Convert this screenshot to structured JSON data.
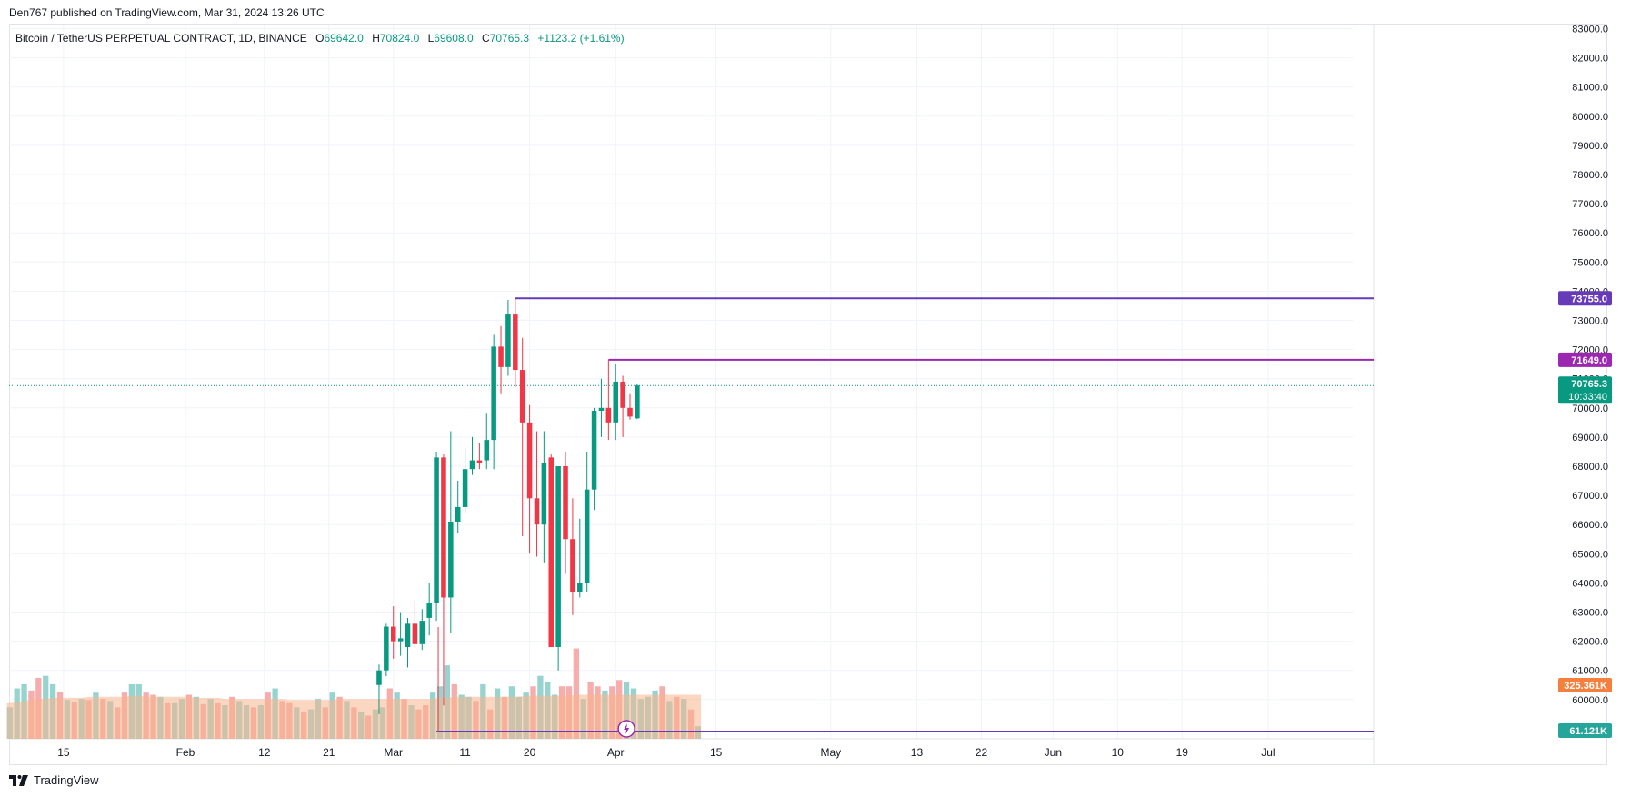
{
  "header": {
    "published": "Den767 published on TradingView.com, Mar 31, 2024 13:26 UTC"
  },
  "legend": {
    "symbol": "Bitcoin / TetherUS PERPETUAL CONTRACT, 1D, BINANCE",
    "o_label": "O",
    "o": "69642.0",
    "h_label": "H",
    "h": "70824.0",
    "l_label": "L",
    "l": "69608.0",
    "c_label": "C",
    "c": "70765.3",
    "change": "+1123.2 (+1.61%)"
  },
  "footer": {
    "brand": "TradingView",
    "logo_icon": "tradingview-logo-icon"
  },
  "colors": {
    "up": "#089981",
    "down": "#f23645",
    "vol_up": "#92d2cc",
    "vol_down": "#f7a9a7",
    "vol_ma": "#f7b48d",
    "level": "#7e3eb9",
    "level2": "#9c27b0",
    "last_price": "#089981",
    "vol_label": "#f57f3c"
  },
  "chart_data": {
    "type": "candlestick",
    "symbol": "Bitcoin / TetherUS PERPETUAL CONTRACT",
    "timeframe": "1D",
    "exchange": "BINANCE",
    "ylim": [
      59500,
      83000
    ],
    "y_ticks": [
      "83000.0",
      "82000.0",
      "81000.0",
      "80000.0",
      "79000.0",
      "78000.0",
      "77000.0",
      "76000.0",
      "75000.0",
      "74000.0",
      "73000.0",
      "72000.0",
      "71000.0",
      "70000.0",
      "69000.0",
      "68000.0",
      "67000.0",
      "66000.0",
      "65000.0",
      "64000.0",
      "63000.0",
      "62000.0",
      "61000.0",
      "60000.0"
    ],
    "x_ticks": [
      {
        "label": "15",
        "day": 15
      },
      {
        "label": "Feb",
        "day": 32
      },
      {
        "label": "12",
        "day": 43
      },
      {
        "label": "21",
        "day": 52
      },
      {
        "label": "Mar",
        "day": 61
      },
      {
        "label": "11",
        "day": 71
      },
      {
        "label": "20",
        "day": 80
      },
      {
        "label": "Apr",
        "day": 92
      },
      {
        "label": "15",
        "day": 106
      },
      {
        "label": "May",
        "day": 122
      },
      {
        "label": "13",
        "day": 134
      },
      {
        "label": "22",
        "day": 143
      },
      {
        "label": "Jun",
        "day": 153
      },
      {
        "label": "10",
        "day": 162
      },
      {
        "label": "19",
        "day": 171
      },
      {
        "label": "Jul",
        "day": 183
      }
    ],
    "x_domain_days": [
      7.4,
      194.8
    ],
    "candles": [
      {
        "day": 59,
        "o": 60500,
        "h": 61200,
        "l": 59500,
        "c": 61000
      },
      {
        "day": 60,
        "o": 61000,
        "h": 62600,
        "l": 60800,
        "c": 62500
      },
      {
        "day": 61,
        "o": 62500,
        "h": 63200,
        "l": 61400,
        "c": 62000
      },
      {
        "day": 62,
        "o": 62000,
        "h": 63000,
        "l": 61500,
        "c": 62100
      },
      {
        "day": 63,
        "o": 61800,
        "h": 62800,
        "l": 61100,
        "c": 62600
      },
      {
        "day": 64,
        "o": 62600,
        "h": 63400,
        "l": 61800,
        "c": 61900
      },
      {
        "day": 65,
        "o": 61900,
        "h": 63100,
        "l": 61700,
        "c": 62700
      },
      {
        "day": 66,
        "o": 62800,
        "h": 64000,
        "l": 62200,
        "c": 63300
      },
      {
        "day": 67,
        "o": 63300,
        "h": 68500,
        "l": 62700,
        "c": 68300
      },
      {
        "day": 68,
        "o": 68300,
        "h": 68400,
        "l": 59800,
        "c": 63500
      },
      {
        "day": 69,
        "o": 63500,
        "h": 69200,
        "l": 62300,
        "c": 66100
      },
      {
        "day": 70,
        "o": 66100,
        "h": 67500,
        "l": 65700,
        "c": 66600
      },
      {
        "day": 71,
        "o": 66600,
        "h": 68600,
        "l": 66400,
        "c": 67900
      },
      {
        "day": 72,
        "o": 67900,
        "h": 69000,
        "l": 67700,
        "c": 68200
      },
      {
        "day": 73,
        "o": 68200,
        "h": 68800,
        "l": 67900,
        "c": 68100
      },
      {
        "day": 74,
        "o": 68200,
        "h": 69800,
        "l": 67900,
        "c": 68900
      },
      {
        "day": 75,
        "o": 68900,
        "h": 72500,
        "l": 67900,
        "c": 72100
      },
      {
        "day": 76,
        "o": 72100,
        "h": 72800,
        "l": 70500,
        "c": 71400
      },
      {
        "day": 77,
        "o": 71400,
        "h": 73700,
        "l": 71100,
        "c": 73200
      },
      {
        "day": 78,
        "o": 73200,
        "h": 73755,
        "l": 70700,
        "c": 71300
      },
      {
        "day": 79,
        "o": 71300,
        "h": 72400,
        "l": 65600,
        "c": 69500
      },
      {
        "day": 80,
        "o": 69500,
        "h": 70100,
        "l": 65000,
        "c": 66900
      },
      {
        "day": 81,
        "o": 66900,
        "h": 69200,
        "l": 64900,
        "c": 66000
      },
      {
        "day": 82,
        "o": 66000,
        "h": 69200,
        "l": 64700,
        "c": 68100
      },
      {
        "day": 83,
        "o": 68300,
        "h": 68400,
        "l": 61800,
        "c": 61800
      },
      {
        "day": 84,
        "o": 61800,
        "h": 68000,
        "l": 61000,
        "c": 68000
      },
      {
        "day": 85,
        "o": 68000,
        "h": 68500,
        "l": 64300,
        "c": 65500
      },
      {
        "day": 86,
        "o": 65500,
        "h": 66900,
        "l": 62900,
        "c": 63700
      },
      {
        "day": 87,
        "o": 63700,
        "h": 66200,
        "l": 63500,
        "c": 64000
      },
      {
        "day": 88,
        "o": 64000,
        "h": 68500,
        "l": 63700,
        "c": 67200
      },
      {
        "day": 89,
        "o": 67200,
        "h": 70000,
        "l": 66500,
        "c": 69900
      },
      {
        "day": 90,
        "o": 69900,
        "h": 71000,
        "l": 69000,
        "c": 70000
      },
      {
        "day": 91,
        "o": 70000,
        "h": 71649,
        "l": 68900,
        "c": 69500
      },
      {
        "day": 92,
        "o": 69500,
        "h": 71500,
        "l": 68900,
        "c": 70900
      },
      {
        "day": 93,
        "o": 70900,
        "h": 71100,
        "l": 69000,
        "c": 70000
      },
      {
        "day": 94,
        "o": 70000,
        "h": 70500,
        "l": 69600,
        "c": 69700
      },
      {
        "day": 95,
        "o": 69642,
        "h": 70824,
        "l": 69608,
        "c": 70765.3
      }
    ],
    "volume": {
      "values": [
        30,
        48,
        52,
        46,
        58,
        60,
        52,
        45,
        37,
        35,
        38,
        37,
        44,
        38,
        36,
        30,
        44,
        52,
        52,
        44,
        42,
        40,
        34,
        34,
        38,
        42,
        40,
        33,
        38,
        34,
        32,
        40,
        36,
        32,
        30,
        32,
        44,
        48,
        36,
        34,
        30,
        26,
        28,
        38,
        30,
        44,
        40,
        36,
        30,
        26,
        22,
        28,
        30,
        48,
        44,
        38,
        32,
        28,
        32,
        44,
        50,
        70,
        52,
        42,
        40,
        36,
        52,
        28,
        48,
        40,
        50,
        40,
        44,
        50,
        60,
        54,
        42,
        50,
        50,
        86,
        38,
        54,
        50,
        46,
        50,
        56,
        54,
        48,
        38,
        40,
        46,
        50,
        36,
        40,
        38,
        28,
        12
      ],
      "up": [
        1,
        1,
        1,
        0,
        0,
        1,
        1,
        0,
        1,
        0,
        1,
        0,
        1,
        0,
        1,
        0,
        0,
        1,
        1,
        0,
        0,
        1,
        0,
        1,
        1,
        0,
        1,
        0,
        1,
        0,
        1,
        0,
        1,
        1,
        0,
        1,
        0,
        1,
        0,
        0,
        1,
        0,
        1,
        1,
        0,
        1,
        0,
        1,
        0,
        1,
        0,
        1,
        1,
        0,
        1,
        0,
        1,
        0,
        0,
        1,
        1,
        1,
        0,
        1,
        1,
        0,
        1,
        0,
        1,
        0,
        1,
        1,
        1,
        0,
        1,
        1,
        1,
        0,
        0,
        0,
        1,
        0,
        0,
        1,
        0,
        0,
        1,
        1,
        1,
        1,
        1,
        0,
        1,
        0,
        1,
        0,
        1
      ],
      "ma": [
        34,
        35,
        36,
        37,
        38,
        38,
        39,
        39,
        39,
        39,
        39,
        40,
        40,
        40,
        40,
        40,
        40,
        41,
        41,
        40,
        40,
        40,
        40,
        40,
        40,
        40,
        39,
        39,
        39,
        39,
        38,
        38,
        38,
        38,
        38,
        38,
        38,
        38,
        38,
        37,
        37,
        37,
        37,
        37,
        37,
        37,
        38,
        38,
        38,
        38,
        38,
        38,
        38,
        38,
        38,
        38,
        38,
        38,
        38,
        38,
        39,
        39,
        40,
        40,
        40,
        40,
        40,
        40,
        40,
        40,
        40,
        40,
        41,
        41,
        41,
        41,
        41,
        41,
        41,
        42,
        42,
        42,
        42,
        42,
        42,
        42,
        42,
        42,
        42,
        42,
        42,
        42,
        42,
        42,
        42,
        42,
        42
      ],
      "first_day": 0
    },
    "levels": [
      {
        "price": 73755.0,
        "label": "73755.0",
        "from_day": 78,
        "color": "#673ab7"
      },
      {
        "price": 71649.0,
        "label": "71649.0",
        "from_day": 91,
        "color": "#9c27b0"
      }
    ],
    "last_price": {
      "value": 70765.3,
      "label": "70765.3",
      "countdown": "10:33:40"
    },
    "volume_ma_label": "325.361K",
    "volume_last_label": "61.121K",
    "bottom_line_from_day": 67
  }
}
